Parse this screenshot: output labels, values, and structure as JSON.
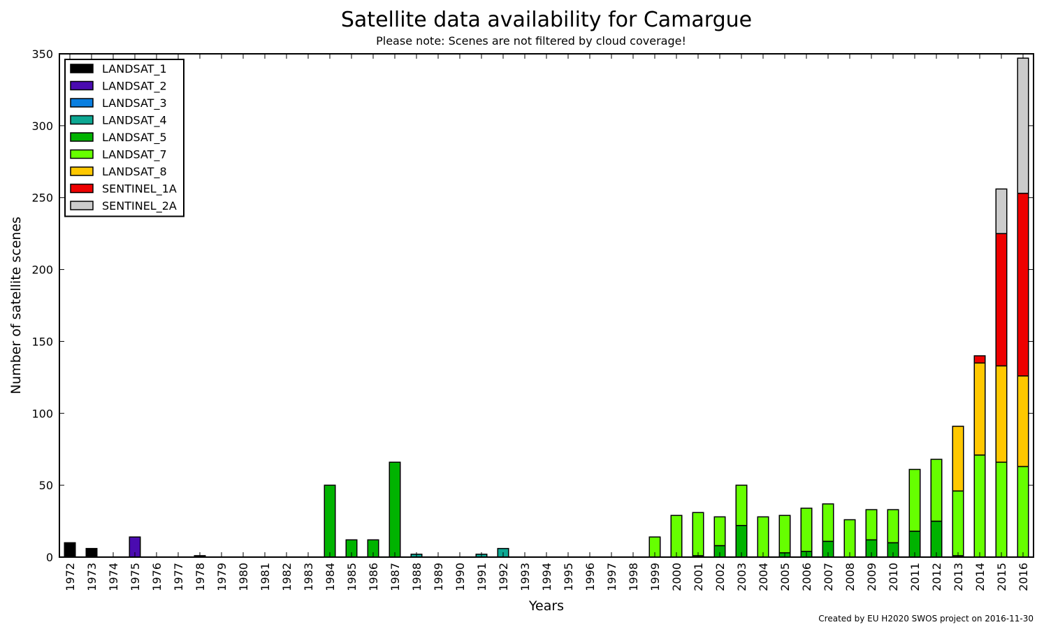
{
  "chart_data": {
    "type": "bar",
    "stacked": true,
    "title": "Satellite data availability for Camargue",
    "subtitle": "Please note: Scenes are not filtered by cloud coverage!",
    "xlabel": "Years",
    "ylabel": "Number of satellite scenes",
    "ylim": [
      0,
      350
    ],
    "yticks": [
      0,
      50,
      100,
      150,
      200,
      250,
      300,
      350
    ],
    "legend_position": "top-left",
    "footer": "Created by EU H2020 SWOS project on 2016-11-30",
    "categories": [
      "1972",
      "1973",
      "1974",
      "1975",
      "1976",
      "1977",
      "1978",
      "1979",
      "1980",
      "1981",
      "1982",
      "1983",
      "1984",
      "1985",
      "1986",
      "1987",
      "1988",
      "1989",
      "1990",
      "1991",
      "1992",
      "1993",
      "1994",
      "1995",
      "1996",
      "1997",
      "1998",
      "1999",
      "2000",
      "2001",
      "2002",
      "2003",
      "2004",
      "2005",
      "2006",
      "2007",
      "2008",
      "2009",
      "2010",
      "2011",
      "2012",
      "2013",
      "2014",
      "2015",
      "2016"
    ],
    "series": [
      {
        "name": "LANDSAT_1",
        "color": "#000000",
        "values": [
          10,
          6,
          0,
          0,
          0,
          0,
          1,
          0,
          0,
          0,
          0,
          0,
          0,
          0,
          0,
          0,
          0,
          0,
          0,
          0,
          0,
          0,
          0,
          0,
          0,
          0,
          0,
          0,
          0,
          0,
          0,
          0,
          0,
          0,
          0,
          0,
          0,
          0,
          0,
          0,
          0,
          0,
          0,
          0,
          0
        ]
      },
      {
        "name": "LANDSAT_2",
        "color": "#4a0bb0",
        "values": [
          0,
          0,
          0,
          14,
          0,
          0,
          0,
          0,
          0,
          0,
          0,
          0,
          0,
          0,
          0,
          0,
          0,
          0,
          0,
          0,
          0,
          0,
          0,
          0,
          0,
          0,
          0,
          0,
          0,
          0,
          0,
          0,
          0,
          0,
          0,
          0,
          0,
          0,
          0,
          0,
          0,
          0,
          0,
          0,
          0
        ]
      },
      {
        "name": "LANDSAT_3",
        "color": "#0a7fe0",
        "values": [
          0,
          0,
          0,
          0,
          0,
          0,
          0,
          0,
          0,
          0,
          0,
          0,
          0,
          0,
          0,
          0,
          0,
          0,
          0,
          0,
          0,
          0,
          0,
          0,
          0,
          0,
          0,
          0,
          0,
          0,
          0,
          0,
          0,
          0,
          0,
          0,
          0,
          0,
          0,
          0,
          0,
          0,
          0,
          0,
          0
        ]
      },
      {
        "name": "LANDSAT_4",
        "color": "#0ea893",
        "values": [
          0,
          0,
          0,
          0,
          0,
          0,
          0,
          0,
          0,
          0,
          0,
          0,
          0,
          0,
          0,
          0,
          2,
          0,
          0,
          2,
          6,
          0,
          0,
          0,
          0,
          0,
          0,
          0,
          0,
          0,
          0,
          0,
          0,
          0,
          0,
          0,
          0,
          0,
          0,
          0,
          0,
          0,
          0,
          0,
          0
        ]
      },
      {
        "name": "LANDSAT_5",
        "color": "#00b300",
        "values": [
          0,
          0,
          0,
          0,
          0,
          0,
          0,
          0,
          0,
          0,
          0,
          0,
          50,
          12,
          12,
          66,
          0,
          0,
          0,
          0,
          0,
          0,
          0,
          0,
          0,
          0,
          0,
          0,
          0,
          1,
          8,
          22,
          0,
          3,
          4,
          11,
          0,
          12,
          10,
          18,
          25,
          1,
          0,
          0,
          0
        ]
      },
      {
        "name": "LANDSAT_7",
        "color": "#66ff00",
        "values": [
          0,
          0,
          0,
          0,
          0,
          0,
          0,
          0,
          0,
          0,
          0,
          0,
          0,
          0,
          0,
          0,
          0,
          0,
          0,
          0,
          0,
          0,
          0,
          0,
          0,
          0,
          0,
          14,
          29,
          30,
          20,
          28,
          28,
          26,
          30,
          26,
          26,
          21,
          23,
          43,
          43,
          45,
          71,
          66,
          63
        ]
      },
      {
        "name": "LANDSAT_8",
        "color": "#ffc800",
        "values": [
          0,
          0,
          0,
          0,
          0,
          0,
          0,
          0,
          0,
          0,
          0,
          0,
          0,
          0,
          0,
          0,
          0,
          0,
          0,
          0,
          0,
          0,
          0,
          0,
          0,
          0,
          0,
          0,
          0,
          0,
          0,
          0,
          0,
          0,
          0,
          0,
          0,
          0,
          0,
          0,
          0,
          45,
          64,
          67,
          63
        ]
      },
      {
        "name": "SENTINEL_1A",
        "color": "#ee0000",
        "values": [
          0,
          0,
          0,
          0,
          0,
          0,
          0,
          0,
          0,
          0,
          0,
          0,
          0,
          0,
          0,
          0,
          0,
          0,
          0,
          0,
          0,
          0,
          0,
          0,
          0,
          0,
          0,
          0,
          0,
          0,
          0,
          0,
          0,
          0,
          0,
          0,
          0,
          0,
          0,
          0,
          0,
          0,
          5,
          92,
          127
        ]
      },
      {
        "name": "SENTINEL_2A",
        "color": "#cccccc",
        "values": [
          0,
          0,
          0,
          0,
          0,
          0,
          0,
          0,
          0,
          0,
          0,
          0,
          0,
          0,
          0,
          0,
          0,
          0,
          0,
          0,
          0,
          0,
          0,
          0,
          0,
          0,
          0,
          0,
          0,
          0,
          0,
          0,
          0,
          0,
          0,
          0,
          0,
          0,
          0,
          0,
          0,
          0,
          0,
          31,
          94
        ]
      }
    ]
  }
}
